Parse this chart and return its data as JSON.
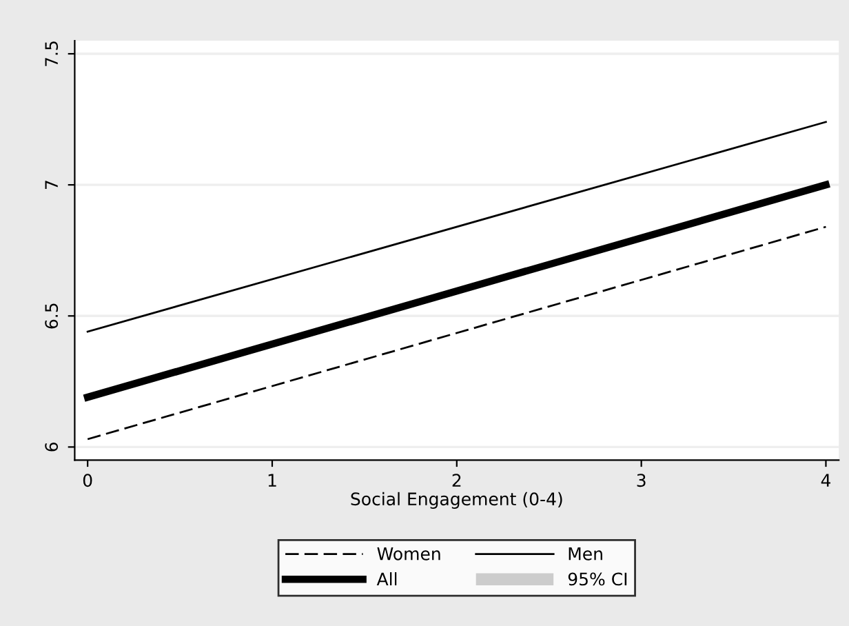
{
  "chart_data": {
    "type": "line",
    "xlabel": "Social Engagement (0-4)",
    "x": [
      0,
      4
    ],
    "xlim": [
      -0.07,
      4.07
    ],
    "xticks": [
      0,
      1,
      2,
      3,
      4
    ],
    "ylim": [
      5.95,
      7.55
    ],
    "yticks": [
      6,
      6.5,
      7,
      7.5
    ],
    "grid": "y",
    "legend": "bottom",
    "series": [
      {
        "name": "Women",
        "color": "#000000",
        "values": [
          6.03,
          6.84
        ],
        "line_style": "dashed"
      },
      {
        "name": "Men",
        "color": "#000000",
        "values": [
          6.44,
          7.24
        ],
        "line_style": "solid"
      },
      {
        "name": "All",
        "color": "#000000",
        "values": [
          6.19,
          7.0
        ],
        "line_style": "solid"
      }
    ],
    "annotations": [
      "95% CI"
    ]
  }
}
